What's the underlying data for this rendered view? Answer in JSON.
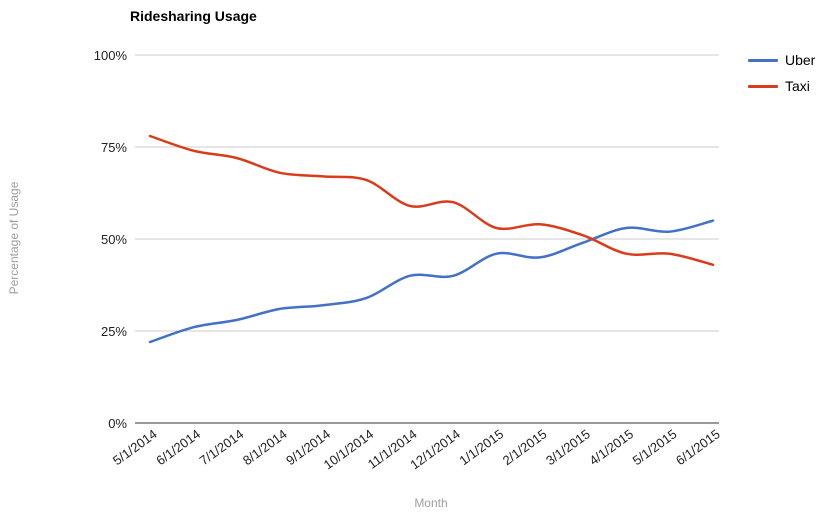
{
  "chart_data": {
    "type": "line",
    "title": "Ridesharing Usage",
    "xlabel": "Month",
    "ylabel": "Percentage of Usage",
    "line_style": "smooth",
    "grid": true,
    "legend_position": "right",
    "ylim": [
      0,
      100
    ],
    "y_ticks": [
      {
        "value": 0,
        "label": "0%"
      },
      {
        "value": 25,
        "label": "25%"
      },
      {
        "value": 50,
        "label": "50%"
      },
      {
        "value": 75,
        "label": "75%"
      },
      {
        "value": 100,
        "label": "100%"
      }
    ],
    "categories": [
      "5/1/2014",
      "6/1/2014",
      "7/1/2014",
      "8/1/2014",
      "9/1/2014",
      "10/1/2014",
      "11/1/2014",
      "12/1/2014",
      "1/1/2015",
      "2/1/2015",
      "3/1/2015",
      "4/1/2015",
      "5/1/2015",
      "6/1/2015"
    ],
    "series": [
      {
        "name": "Uber",
        "color": "#4372C5",
        "values": [
          22,
          26,
          28,
          31,
          32,
          34,
          40,
          40,
          46,
          45,
          49,
          53,
          52,
          55
        ]
      },
      {
        "name": "Taxi",
        "color": "#D93C1B",
        "values": [
          78,
          74,
          72,
          68,
          67,
          66,
          59,
          60,
          53,
          54,
          51,
          46,
          46,
          43
        ]
      }
    ],
    "colors": {
      "gridline": "#cccccc",
      "baseline": "#333333",
      "tick_text": "#222222",
      "axis_title_text": "#9e9e9e"
    }
  }
}
